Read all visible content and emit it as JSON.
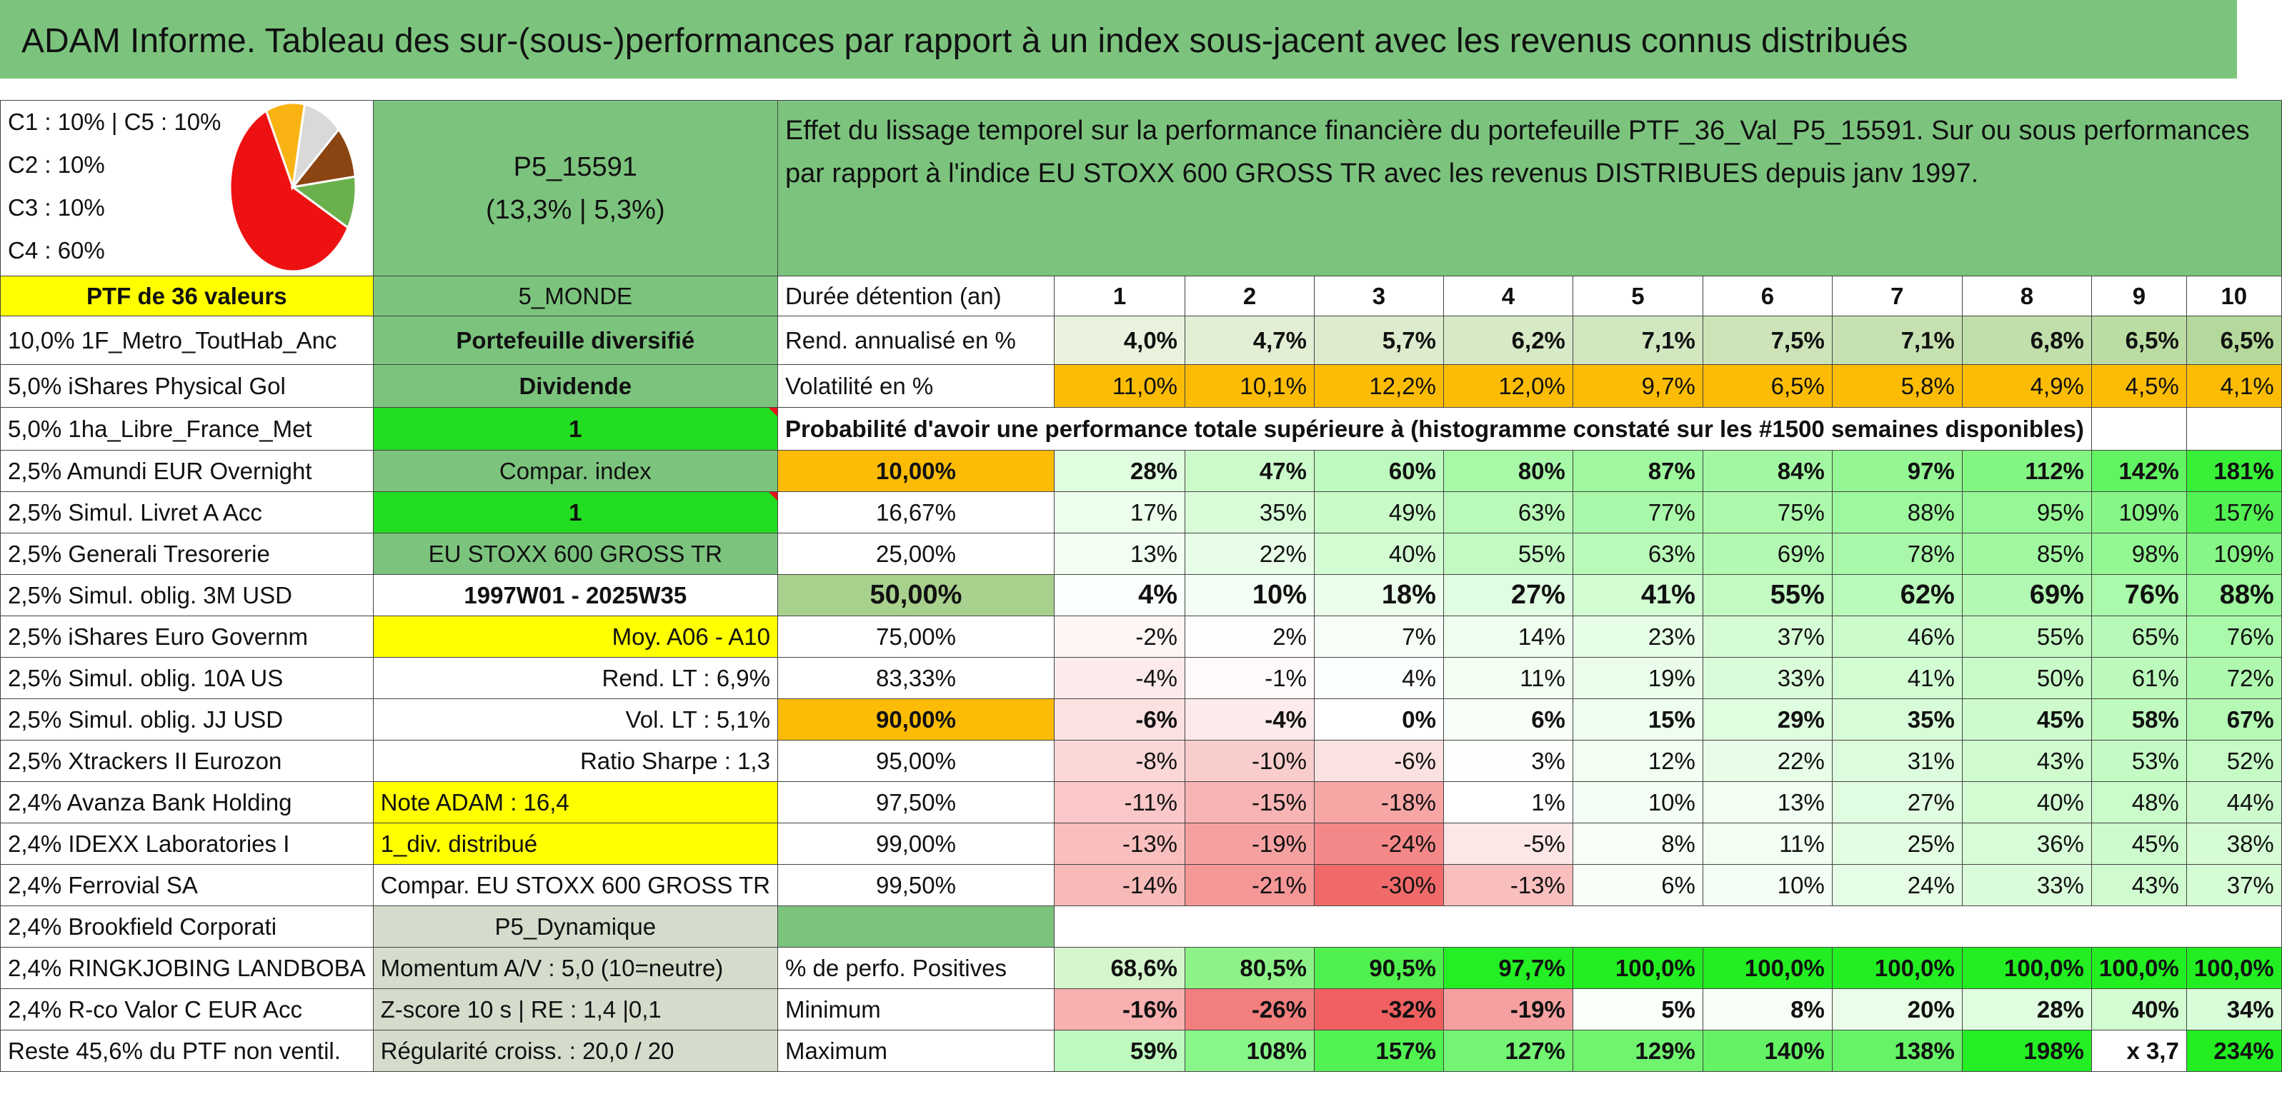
{
  "title": "ADAM Informe. Tableau des sur-(sous-)performances par rapport à un index sous-jacent avec les revenus connus distribués",
  "allocation": {
    "line1": "C1 : 10% | C5 : 10%",
    "line2": "C2 : 10%",
    "line3": "C3 : 10%",
    "line4": "C4 : 60%",
    "pie": [
      {
        "label": "C4",
        "value": 60,
        "color": "#ee1111"
      },
      {
        "label": "C1",
        "value": 10,
        "color": "#f9b414"
      },
      {
        "label": "C5",
        "value": 10,
        "color": "#d9d9d9"
      },
      {
        "label": "C2",
        "value": 10,
        "color": "#8b4513"
      },
      {
        "label": "C3",
        "value": 10,
        "color": "#6ab04c"
      }
    ]
  },
  "portfolio": {
    "name": "P5_15591",
    "perf": "(13,3% | 5,3%)",
    "ptf_label": "PTF de 36 valeurs",
    "zone": "5_MONDE",
    "type": "Portefeuille diversifié",
    "dividend_label": "Dividende",
    "dividend_value": "1",
    "compar_label": "Compar. index",
    "compar_value": "1",
    "index_name": "EU STOXX 600 GROSS TR",
    "period": "1997W01 - 2025W35",
    "moy": "Moy. A06 - A10",
    "rend_lt": "Rend. LT : 6,9%",
    "vol_lt": "Vol. LT : 5,1%",
    "sharpe": "Ratio Sharpe : 1,3",
    "note": "Note ADAM : 16,4",
    "div_distrib": "1_div. distribué",
    "compar_full": "Compar. EU STOXX 600 GROSS TR",
    "profile": "P5_Dynamique",
    "momentum": "Momentum A/V : 5,0 (10=neutre)",
    "zscore": "Z-score 10 s | RE : 1,4 |0,1",
    "regularite": "Régularité croiss. : 20,0 / 20"
  },
  "description": "Effet du lissage temporel sur la performance financière du portefeuille PTF_36_Val_P5_15591. Sur ou sous performances par rapport à l'indice EU STOXX 600 GROSS TR avec les revenus DISTRIBUES depuis janv 1997.",
  "holdings": [
    "10,0% 1F_Metro_ToutHab_Anc",
    "5,0% iShares Physical Gol",
    "5,0% 1ha_Libre_France_Met",
    "2,5% Amundi EUR Overnight",
    "2,5% Simul. Livret A Acc",
    "2,5% Generali Tresorerie",
    "2,5% Simul. oblig. 3M USD",
    "2,5% iShares Euro Governm",
    "2,5% Simul. oblig. 10A US",
    "2,5% Simul. oblig. JJ USD",
    "2,5% Xtrackers II Eurozon",
    "2,4% Avanza Bank Holding",
    "2,4% IDEXX Laboratories I",
    "2,4% Ferrovial SA",
    "2,4% Brookfield Corporati",
    "2,4% RINGKJOBING LANDBOBA",
    "2,4% R-co Valor C EUR Acc",
    "Reste 45,6% du PTF non ventil."
  ],
  "durations_label": "Durée détention (an)",
  "durations": [
    "1",
    "2",
    "3",
    "4",
    "5",
    "6",
    "7",
    "8",
    "9",
    "10"
  ],
  "rend_label": "Rend. annualisé en %",
  "rend": [
    "4,0%",
    "4,7%",
    "5,7%",
    "6,2%",
    "7,1%",
    "7,5%",
    "7,1%",
    "6,8%",
    "6,5%",
    "6,5%"
  ],
  "vol_label": "Volatilité en %",
  "vol": [
    "11,0%",
    "10,1%",
    "12,2%",
    "12,0%",
    "9,7%",
    "6,5%",
    "5,8%",
    "4,9%",
    "4,5%",
    "4,1%"
  ],
  "prob_header": "Probabilité d'avoir une performance totale supérieure à (histogramme constaté sur les #1500 semaines disponibles)",
  "quantiles": [
    {
      "p": "10,00%",
      "v": [
        "28%",
        "47%",
        "60%",
        "80%",
        "87%",
        "84%",
        "97%",
        "112%",
        "142%",
        "181%"
      ]
    },
    {
      "p": "16,67%",
      "v": [
        "17%",
        "35%",
        "49%",
        "63%",
        "77%",
        "75%",
        "88%",
        "95%",
        "109%",
        "157%"
      ]
    },
    {
      "p": "25,00%",
      "v": [
        "13%",
        "22%",
        "40%",
        "55%",
        "63%",
        "69%",
        "78%",
        "85%",
        "98%",
        "109%"
      ]
    },
    {
      "p": "50,00%",
      "v": [
        "4%",
        "10%",
        "18%",
        "27%",
        "41%",
        "55%",
        "62%",
        "69%",
        "76%",
        "88%"
      ]
    },
    {
      "p": "75,00%",
      "v": [
        "-2%",
        "2%",
        "7%",
        "14%",
        "23%",
        "37%",
        "46%",
        "55%",
        "65%",
        "76%"
      ]
    },
    {
      "p": "83,33%",
      "v": [
        "-4%",
        "-1%",
        "4%",
        "11%",
        "19%",
        "33%",
        "41%",
        "50%",
        "61%",
        "72%"
      ]
    },
    {
      "p": "90,00%",
      "v": [
        "-6%",
        "-4%",
        "0%",
        "6%",
        "15%",
        "29%",
        "35%",
        "45%",
        "58%",
        "67%"
      ]
    },
    {
      "p": "95,00%",
      "v": [
        "-8%",
        "-10%",
        "-6%",
        "3%",
        "12%",
        "22%",
        "31%",
        "43%",
        "53%",
        "52%"
      ]
    },
    {
      "p": "97,50%",
      "v": [
        "-11%",
        "-15%",
        "-18%",
        "1%",
        "10%",
        "13%",
        "27%",
        "40%",
        "48%",
        "44%"
      ]
    },
    {
      "p": "99,00%",
      "v": [
        "-13%",
        "-19%",
        "-24%",
        "-5%",
        "8%",
        "11%",
        "25%",
        "36%",
        "45%",
        "38%"
      ]
    },
    {
      "p": "99,50%",
      "v": [
        "-14%",
        "-21%",
        "-30%",
        "-13%",
        "6%",
        "10%",
        "24%",
        "33%",
        "43%",
        "37%"
      ]
    }
  ],
  "pos_label": "% de perfo. Positives",
  "pos": [
    "68,6%",
    "80,5%",
    "90,5%",
    "97,7%",
    "100,0%",
    "100,0%",
    "100,0%",
    "100,0%",
    "100,0%",
    "100,0%"
  ],
  "min_label": "Minimum",
  "min": [
    "-16%",
    "-26%",
    "-32%",
    "-19%",
    "5%",
    "8%",
    "20%",
    "28%",
    "40%",
    "34%"
  ],
  "max_label": "Maximum",
  "max": [
    "59%",
    "108%",
    "157%",
    "127%",
    "129%",
    "140%",
    "138%",
    "198%",
    "x 3,7",
    "234%"
  ]
}
